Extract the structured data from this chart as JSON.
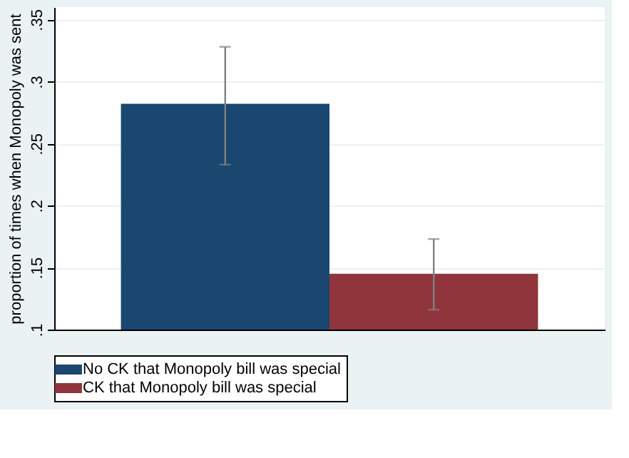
{
  "chart_data": {
    "type": "bar",
    "ylabel": "proportion of times when Monopoly was sent",
    "categories": [
      null
    ],
    "series": [
      {
        "name": "No CK that Monopoly bill was special",
        "color": "#1a476f",
        "values": [
          0.282
        ],
        "errors": [
          [
            0.233,
            0.328
          ]
        ]
      },
      {
        "name": "CK that Monopoly bill was special",
        "color": "#90353b",
        "values": [
          0.145
        ],
        "errors": [
          [
            0.116,
            0.173
          ]
        ]
      }
    ],
    "ylim": [
      0.1,
      0.36
    ],
    "yticks": [
      {
        "value": 0.1,
        "label": ".1"
      },
      {
        "value": 0.15,
        "label": ".15"
      },
      {
        "value": 0.2,
        "label": ".2"
      },
      {
        "value": 0.25,
        "label": ".25"
      },
      {
        "value": 0.3,
        "label": ".3"
      },
      {
        "value": 0.35,
        "label": ".35"
      }
    ],
    "grid": "y",
    "legend": "bottom",
    "tick_labels": "y"
  }
}
